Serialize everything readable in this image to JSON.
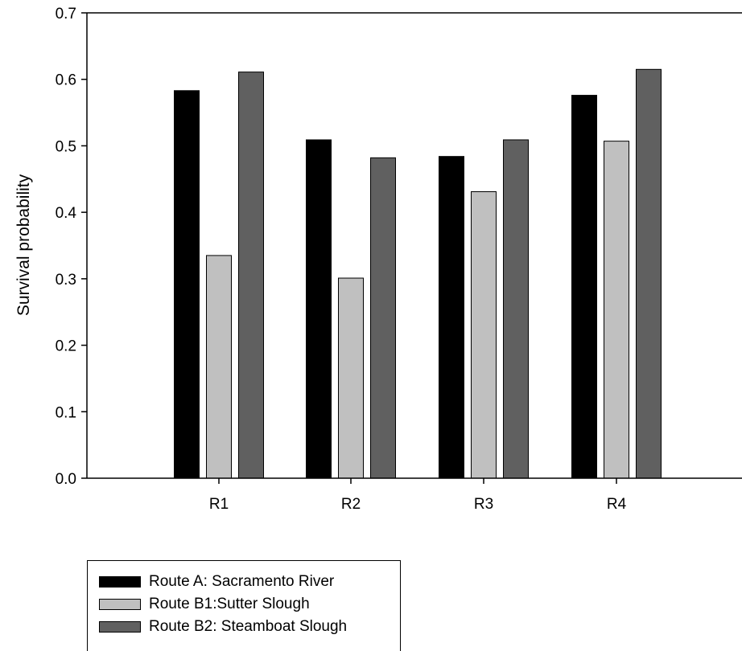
{
  "chart_data": {
    "type": "bar",
    "title": "",
    "xlabel": "",
    "ylabel": "Survival probability",
    "ylim": [
      0,
      0.7
    ],
    "yticks": [
      "0.0",
      "0.1",
      "0.2",
      "0.3",
      "0.4",
      "0.5",
      "0.6",
      "0.7"
    ],
    "categories": [
      "R1",
      "R2",
      "R3",
      "R4"
    ],
    "grid": false,
    "legend_position": "bottom-left",
    "series": [
      {
        "name": "Route A: Sacramento River",
        "color": "#000000",
        "values": [
          0.583,
          0.509,
          0.484,
          0.576
        ]
      },
      {
        "name": "Route B1:Sutter Slough",
        "color": "#c0c0c0",
        "values": [
          0.335,
          0.301,
          0.431,
          0.507
        ]
      },
      {
        "name": "Route B2: Steamboat Slough",
        "color": "#606060",
        "values": [
          0.611,
          0.482,
          0.509,
          0.615
        ]
      }
    ]
  }
}
